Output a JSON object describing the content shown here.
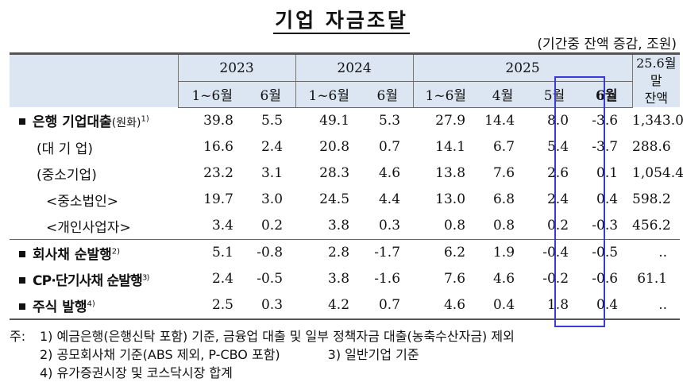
{
  "title": "기업 자금조달",
  "unit": "(기간중 잔액 증감, 조원)",
  "header": {
    "years": [
      "2023",
      "2024",
      "2025"
    ],
    "last_col": [
      "25.6월말",
      "잔액"
    ],
    "sub": [
      "1~6월",
      "6월",
      "1~6월",
      "6월",
      "1~6월",
      "4월",
      "5월",
      "6월"
    ]
  },
  "rows": [
    {
      "label": "은행 기업대출",
      "label_small": "(원화)",
      "note": "1)",
      "values": [
        "39.8",
        "5.5",
        "49.1",
        "5.3",
        "27.9",
        "14.4",
        "8.0",
        "-3.6",
        "1,343.0"
      ]
    },
    {
      "label": "(대 기 업)",
      "values": [
        "16.6",
        "2.4",
        "20.8",
        "0.7",
        "14.1",
        "6.7",
        "5.4",
        "-3.7",
        "288.6"
      ]
    },
    {
      "label": "(중소기업)",
      "values": [
        "23.2",
        "3.1",
        "28.3",
        "4.6",
        "13.8",
        "7.6",
        "2.6",
        "0.1",
        "1,054.4"
      ]
    },
    {
      "label": "<중소법인>",
      "values": [
        "19.7",
        "3.0",
        "24.5",
        "4.4",
        "13.0",
        "6.8",
        "2.4",
        "0.4",
        "598.2"
      ]
    },
    {
      "label": "<개인사업자>",
      "values": [
        "3.4",
        "0.2",
        "3.8",
        "0.3",
        "0.8",
        "0.8",
        "0.2",
        "-0.3",
        "456.2"
      ]
    },
    {
      "label": "회사채 순발행",
      "note": "2)",
      "values": [
        "5.1",
        "-0.8",
        "2.8",
        "-1.7",
        "6.2",
        "1.9",
        "-0.4",
        "-0.5",
        ".."
      ]
    },
    {
      "label": "CP·단기사채 순발행",
      "note": "3)",
      "values": [
        "2.4",
        "-0.5",
        "3.8",
        "-1.6",
        "7.6",
        "4.6",
        "-0.2",
        "-0.6",
        "61.1"
      ]
    },
    {
      "label": "주식 발행",
      "note": "4)",
      "values": [
        "2.5",
        "0.3",
        "4.2",
        "0.7",
        "4.6",
        "0.4",
        "1.8",
        "0.4",
        ".."
      ]
    }
  ],
  "notes": {
    "prefix": "주:",
    "n1": "1) 예금은행(은행신탁 포함) 기준, 금융업 대출 및 일부 정책자금 대출(농축수산자금) 제외",
    "n2": "2) 공모회사채 기준(ABS 제외, P-CBO 포함)",
    "n3": "3) 일반기업 기준",
    "n4": "4) 유가증권시장 및 코스닥시장 합계"
  }
}
